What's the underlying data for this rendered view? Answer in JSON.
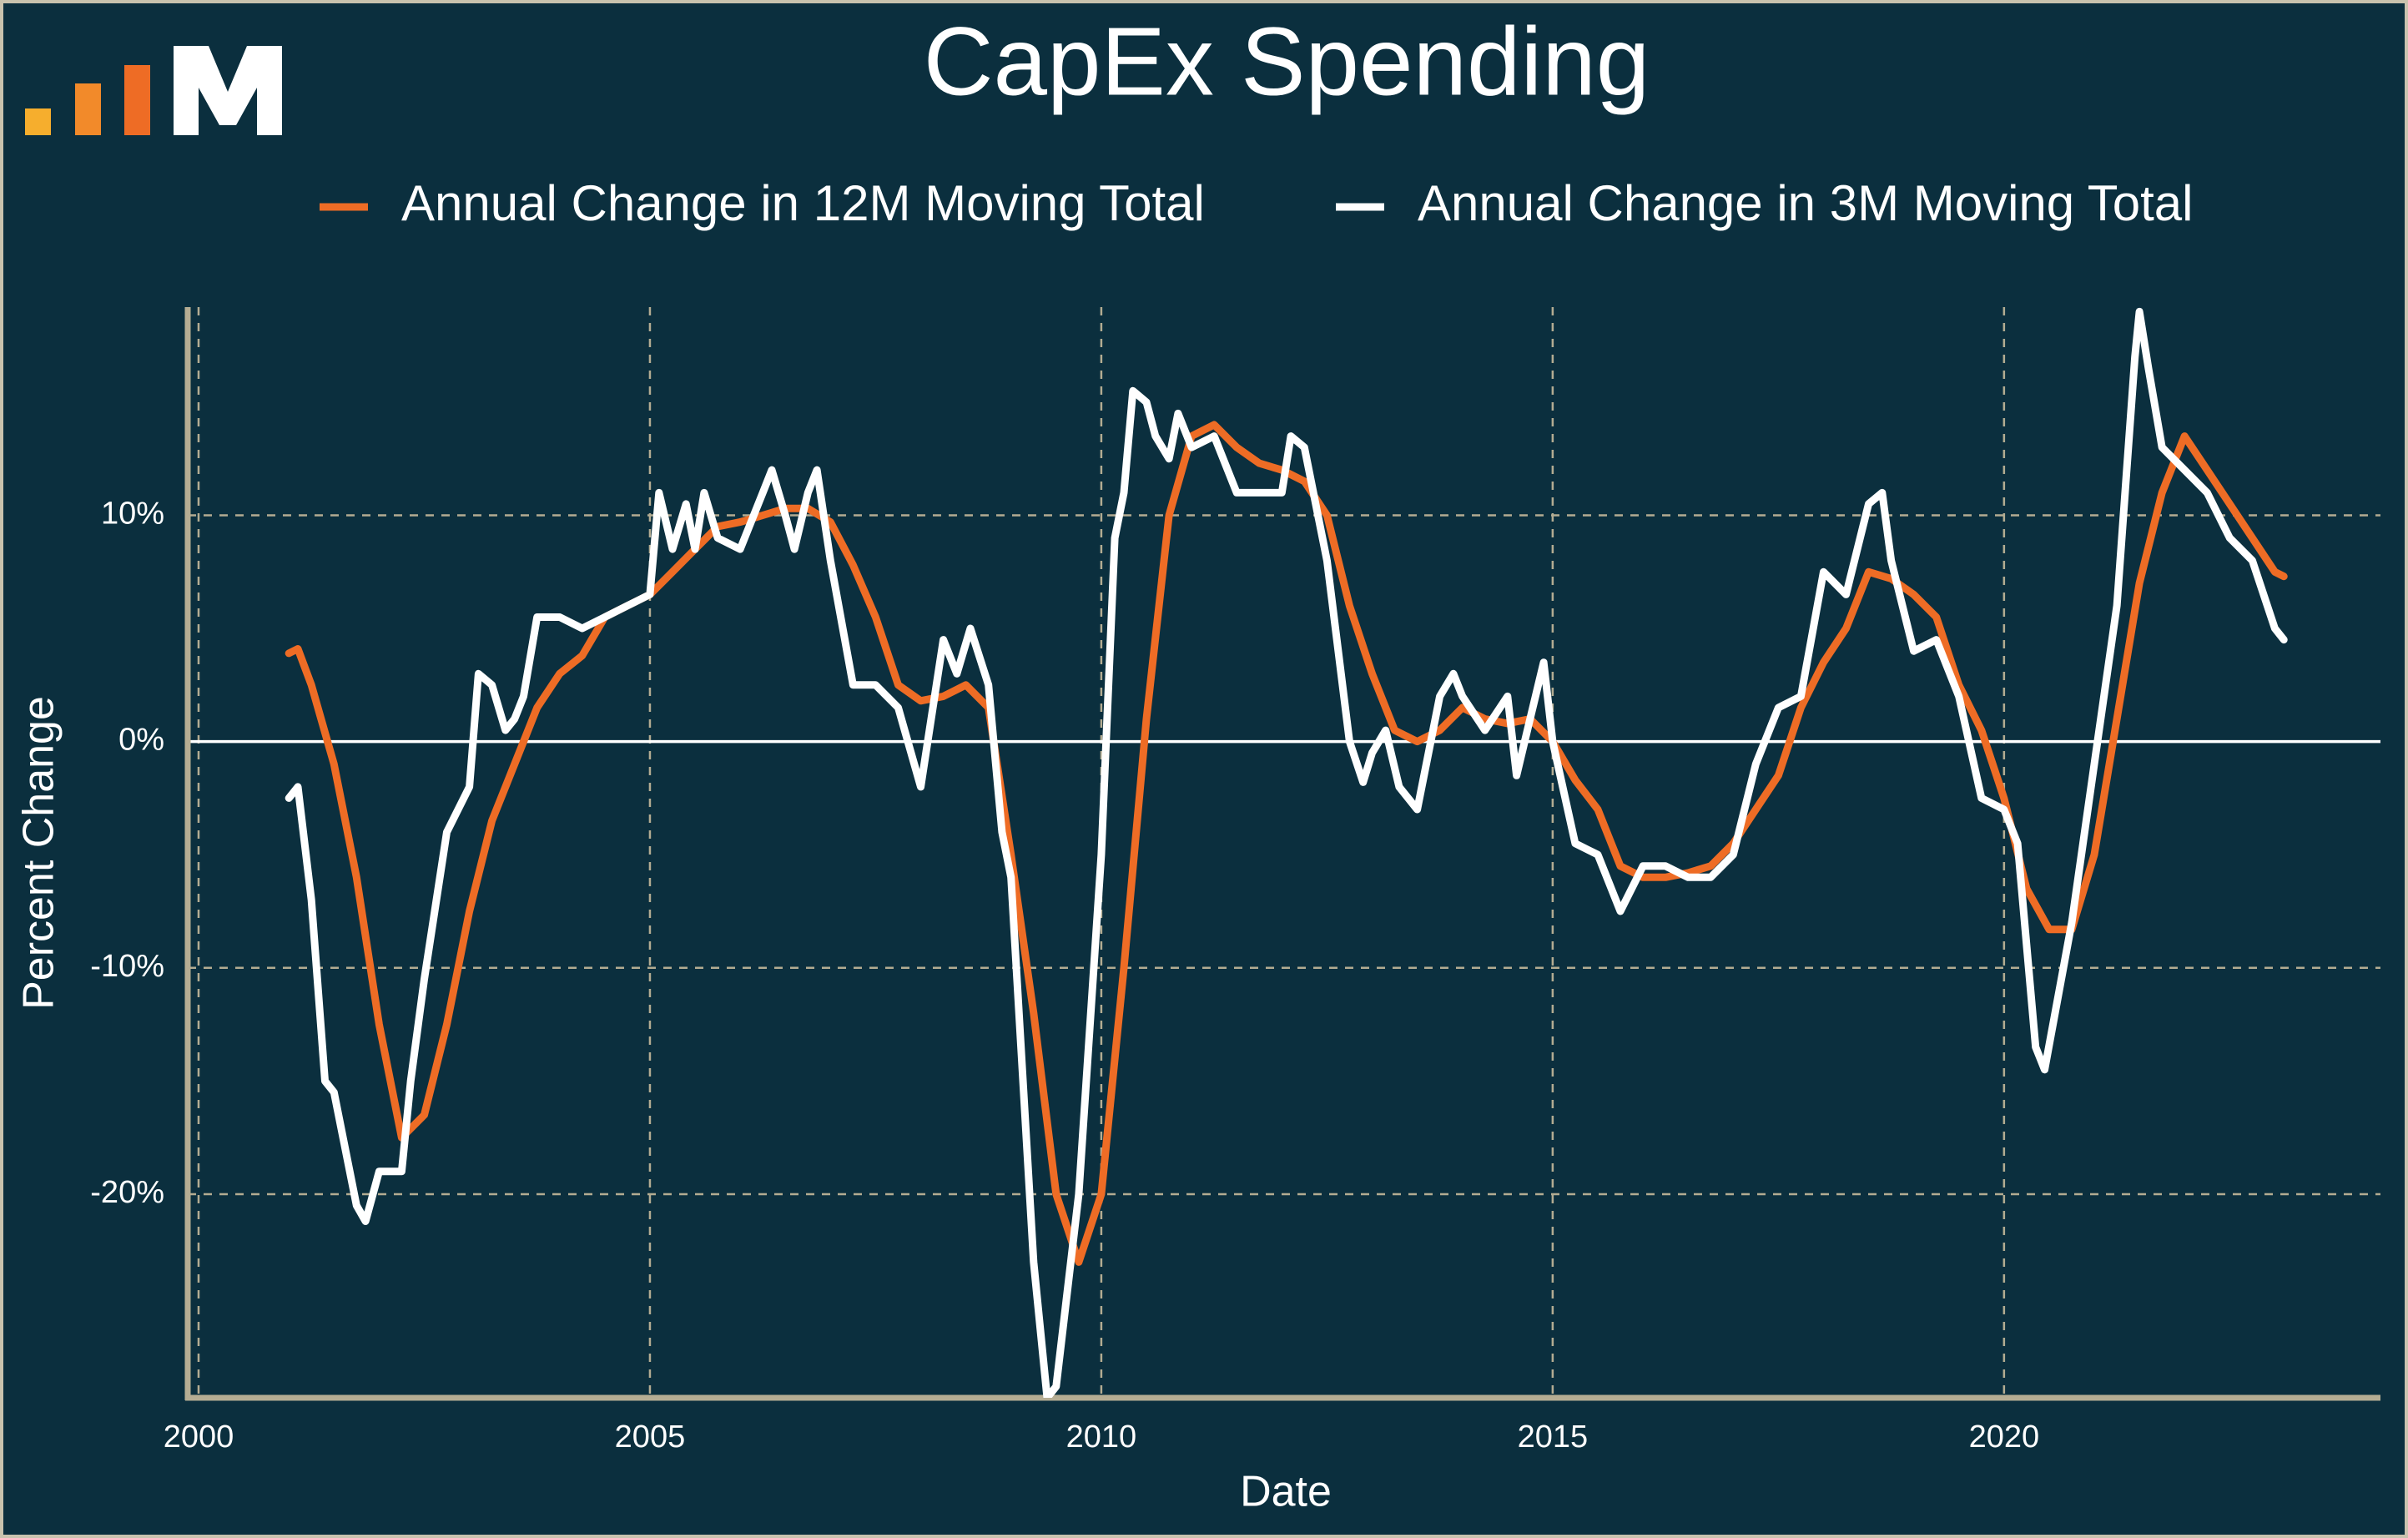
{
  "chart_data": {
    "type": "line",
    "title": "CapEx Spending",
    "xlabel": "Date",
    "ylabel": "Percent Change",
    "xlim": [
      1999.88,
      2024.17
    ],
    "ylim": [
      -29,
      19.2
    ],
    "xticks": [
      2000,
      2005,
      2010,
      2015,
      2020
    ],
    "yticks": [
      {
        "value": -20,
        "label": "-20%"
      },
      {
        "value": -10,
        "label": "-10%"
      },
      {
        "value": 0,
        "label": "0%"
      },
      {
        "value": 10,
        "label": "10%"
      }
    ],
    "grid": true,
    "reference_line": 0,
    "series": [
      {
        "name": "Annual Change in 12M Moving Total",
        "color": "#ee6c25",
        "x": [
          2001.0,
          2001.1,
          2001.25,
          2001.5,
          2001.75,
          2002.0,
          2002.25,
          2002.5,
          2002.75,
          2003.0,
          2003.25,
          2003.5,
          2003.75,
          2004.0,
          2004.25,
          2004.5,
          2004.75,
          2005.0,
          2005.25,
          2005.5,
          2005.75,
          2006.0,
          2006.25,
          2006.5,
          2006.75,
          2007.0,
          2007.25,
          2007.5,
          2007.75,
          2008.0,
          2008.25,
          2008.5,
          2008.75,
          2009.0,
          2009.25,
          2009.5,
          2009.75,
          2010.0,
          2010.25,
          2010.5,
          2010.75,
          2011.0,
          2011.25,
          2011.5,
          2011.75,
          2012.0,
          2012.25,
          2012.5,
          2012.75,
          2013.0,
          2013.25,
          2013.5,
          2013.75,
          2014.0,
          2014.25,
          2014.5,
          2014.75,
          2015.0,
          2015.25,
          2015.5,
          2015.75,
          2016.0,
          2016.25,
          2016.5,
          2016.75,
          2017.0,
          2017.25,
          2017.5,
          2017.75,
          2018.0,
          2018.25,
          2018.5,
          2018.75,
          2019.0,
          2019.25,
          2019.5,
          2019.75,
          2020.0,
          2020.25,
          2020.5,
          2020.75,
          2021.0,
          2021.25,
          2021.5,
          2021.75,
          2022.0,
          2022.25,
          2022.5,
          2022.75,
          2023.0,
          2023.1
        ],
        "values": [
          3.9,
          4.1,
          2.5,
          -1,
          -6,
          -12.5,
          -17.5,
          -16.5,
          -12.5,
          -7.5,
          -3.5,
          -1,
          1.5,
          3,
          3.8,
          5.5,
          6,
          6.5,
          7.5,
          8.5,
          9.5,
          9.7,
          10,
          10.3,
          10.3,
          9.7,
          7.8,
          5.5,
          2.5,
          1.8,
          2,
          2.5,
          1.5,
          -5,
          -12,
          -20,
          -23,
          -20,
          -10,
          1,
          10,
          13.5,
          14,
          13,
          12.3,
          12,
          11.5,
          10,
          6,
          3,
          0.5,
          0,
          0.5,
          1.5,
          1,
          0.8,
          1,
          0,
          -1.7,
          -3,
          -5.5,
          -6,
          -6,
          -5.8,
          -5.5,
          -4.5,
          -3,
          -1.5,
          1.5,
          3.5,
          5,
          7.5,
          7.2,
          6.5,
          5.5,
          2.5,
          0.5,
          -2.5,
          -6.5,
          -8.3,
          -8.3,
          -5,
          1,
          7,
          11,
          13.5,
          12,
          10.5,
          9,
          7.5,
          7.3
        ]
      },
      {
        "name": "Annual Change in 3M Moving Total",
        "color": "#ffffff",
        "x": [
          2001.0,
          2001.1,
          2001.25,
          2001.4,
          2001.5,
          2001.75,
          2001.85,
          2002.0,
          2002.25,
          2002.35,
          2002.5,
          2002.75,
          2003.0,
          2003.1,
          2003.25,
          2003.4,
          2003.5,
          2003.6,
          2003.75,
          2004.0,
          2004.25,
          2004.5,
          2004.75,
          2005.0,
          2005.1,
          2005.25,
          2005.4,
          2005.5,
          2005.6,
          2005.75,
          2006.0,
          2006.25,
          2006.35,
          2006.5,
          2006.6,
          2006.75,
          2006.85,
          2007.0,
          2007.25,
          2007.5,
          2007.75,
          2008.0,
          2008.25,
          2008.4,
          2008.55,
          2008.75,
          2008.9,
          2009.0,
          2009.25,
          2009.4,
          2009.5,
          2009.75,
          2010.0,
          2010.15,
          2010.25,
          2010.35,
          2010.5,
          2010.6,
          2010.75,
          2010.85,
          2011.0,
          2011.25,
          2011.5,
          2011.75,
          2012.0,
          2012.1,
          2012.25,
          2012.5,
          2012.75,
          2012.9,
          2013.0,
          2013.15,
          2013.3,
          2013.5,
          2013.75,
          2013.9,
          2014.0,
          2014.25,
          2014.5,
          2014.6,
          2014.75,
          2014.9,
          2015.0,
          2015.25,
          2015.5,
          2015.75,
          2016.0,
          2016.25,
          2016.5,
          2016.75,
          2017.0,
          2017.25,
          2017.5,
          2017.75,
          2018.0,
          2018.25,
          2018.5,
          2018.65,
          2018.75,
          2019.0,
          2019.25,
          2019.5,
          2019.75,
          2020.0,
          2020.15,
          2020.35,
          2020.45,
          2020.75,
          2021.0,
          2021.25,
          2021.45,
          2021.5,
          2021.6,
          2021.75,
          2022.0,
          2022.25,
          2022.5,
          2022.75,
          2023.0,
          2023.1
        ],
        "values": [
          -2.5,
          -2,
          -7,
          -15,
          -15.5,
          -20.5,
          -21.2,
          -19,
          -19,
          -15,
          -10.5,
          -4,
          -2,
          3,
          2.5,
          0.5,
          1,
          2,
          5.5,
          5.5,
          5,
          5.5,
          6,
          6.5,
          11,
          8.5,
          10.5,
          8.5,
          11,
          9,
          8.5,
          11,
          12,
          10,
          8.5,
          11,
          12,
          8,
          2.5,
          2.5,
          1.5,
          -2,
          4.5,
          3,
          5,
          2.5,
          -4,
          -6,
          -23,
          -29,
          -28.5,
          -20,
          -5,
          9,
          11,
          15.5,
          15,
          13.5,
          12.5,
          14.5,
          13,
          13.5,
          11,
          11,
          11,
          13.5,
          13,
          8,
          0,
          -1.8,
          -0.5,
          0.5,
          -2,
          -3,
          2,
          3,
          2,
          0.5,
          2,
          -1.5,
          1,
          3.5,
          0,
          -4.5,
          -5,
          -7.5,
          -5.5,
          -5.5,
          -6,
          -6,
          -5,
          -1,
          1.5,
          2,
          7.5,
          6.5,
          10.5,
          11,
          8,
          4,
          4.5,
          2,
          -2.5,
          -3,
          -4.5,
          -13.5,
          -14.5,
          -8,
          -1,
          6,
          17,
          19,
          16.5,
          13,
          12,
          11,
          9,
          8,
          5,
          4.5
        ]
      }
    ]
  }
}
